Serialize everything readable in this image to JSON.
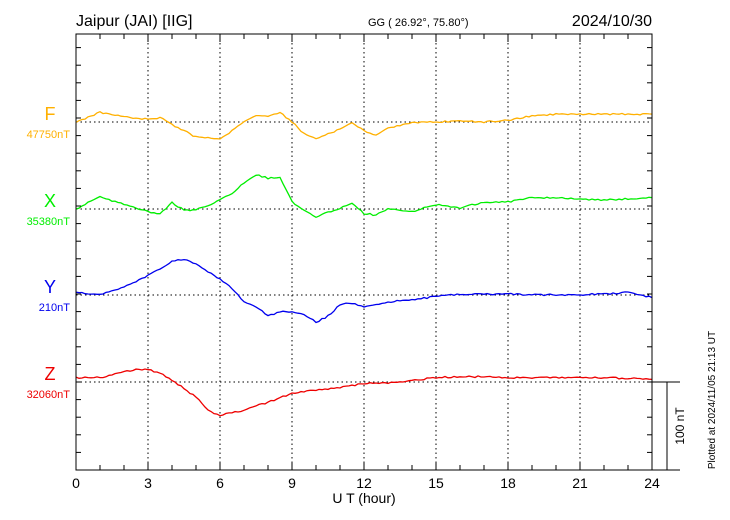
{
  "header": {
    "station": "Jaipur (JAI)  [IIG]",
    "coords": "GG ( 26.92°,  75.80°)",
    "date": "2024/10/30"
  },
  "footer": {
    "plotted": "Plotted at 2024/11/05 21:13 UT",
    "scale_label": "100 nT"
  },
  "chart_data": {
    "type": "line",
    "xlabel": "U T (hour)",
    "xlim": [
      0,
      24
    ],
    "xticks": [
      "0",
      "3",
      "6",
      "9",
      "12",
      "15",
      "18",
      "21",
      "24"
    ],
    "scale_nT": 100,
    "grid": "dotted vertical every 3 h, dotted baseline per series",
    "series": [
      {
        "name": "F",
        "baseline_label": "47750nT",
        "color": "#ffb000",
        "x": [
          0,
          1,
          2,
          3,
          3.5,
          4,
          5,
          6,
          6.5,
          7,
          7.5,
          8,
          8.5,
          9,
          9.5,
          10,
          11,
          11.5,
          12,
          12.5,
          13,
          14,
          15,
          16,
          17,
          18,
          19,
          20,
          22,
          24
        ],
        "values": [
          0,
          11,
          6,
          3,
          5,
          -3,
          -17,
          -19,
          -10,
          0,
          7,
          7,
          11,
          0,
          -13,
          -19,
          -8,
          -1,
          -10,
          -15,
          -7,
          -1,
          0,
          1,
          0,
          2,
          7,
          9,
          9,
          9
        ]
      },
      {
        "name": "X",
        "baseline_label": "35380nT",
        "color": "#00ee00",
        "x": [
          0,
          1,
          2,
          3,
          3.5,
          4,
          4.5,
          5,
          6,
          6.5,
          7,
          7.5,
          8,
          8.5,
          9,
          10,
          11,
          11.5,
          12,
          12.5,
          13,
          14,
          15,
          16,
          17,
          18,
          19,
          20,
          22,
          24
        ],
        "values": [
          0,
          14,
          5,
          -3,
          -5,
          7,
          -1,
          -1,
          10,
          18,
          30,
          39,
          35,
          36,
          8,
          -9,
          1,
          7,
          -5,
          -7,
          1,
          -3,
          5,
          1,
          8,
          8,
          13,
          13,
          10,
          13
        ]
      },
      {
        "name": "Y",
        "baseline_label": "210nT",
        "color": "#0000ee",
        "x": [
          0,
          1,
          2,
          2.5,
          3,
          3.5,
          4,
          4.5,
          5,
          6,
          6.5,
          7,
          7.5,
          8,
          8.5,
          9,
          9.5,
          10,
          10.5,
          11,
          11.5,
          12,
          13,
          14,
          15,
          16,
          18,
          20,
          22,
          23,
          24
        ],
        "values": [
          3,
          0,
          9,
          15,
          22,
          30,
          38,
          41,
          35,
          18,
          7,
          -7,
          -13,
          -24,
          -19,
          -19,
          -22,
          -31,
          -24,
          -11,
          -9,
          -13,
          -8,
          -5,
          -2,
          1,
          1,
          0,
          1,
          3,
          -3
        ]
      },
      {
        "name": "Z",
        "baseline_label": "32060nT",
        "color": "#ee0000",
        "x": [
          0,
          1,
          2,
          2.5,
          3,
          3.5,
          4,
          5,
          5.5,
          6,
          6.5,
          7,
          8,
          9,
          10,
          11,
          12,
          13,
          14,
          15,
          16,
          17,
          18,
          20,
          22,
          24
        ],
        "values": [
          5,
          5,
          11,
          15,
          14,
          10,
          2,
          -17,
          -32,
          -38,
          -35,
          -32,
          -23,
          -13,
          -9,
          -6,
          -2,
          -1,
          2,
          5,
          6,
          6,
          5,
          5,
          5,
          3
        ]
      }
    ]
  }
}
